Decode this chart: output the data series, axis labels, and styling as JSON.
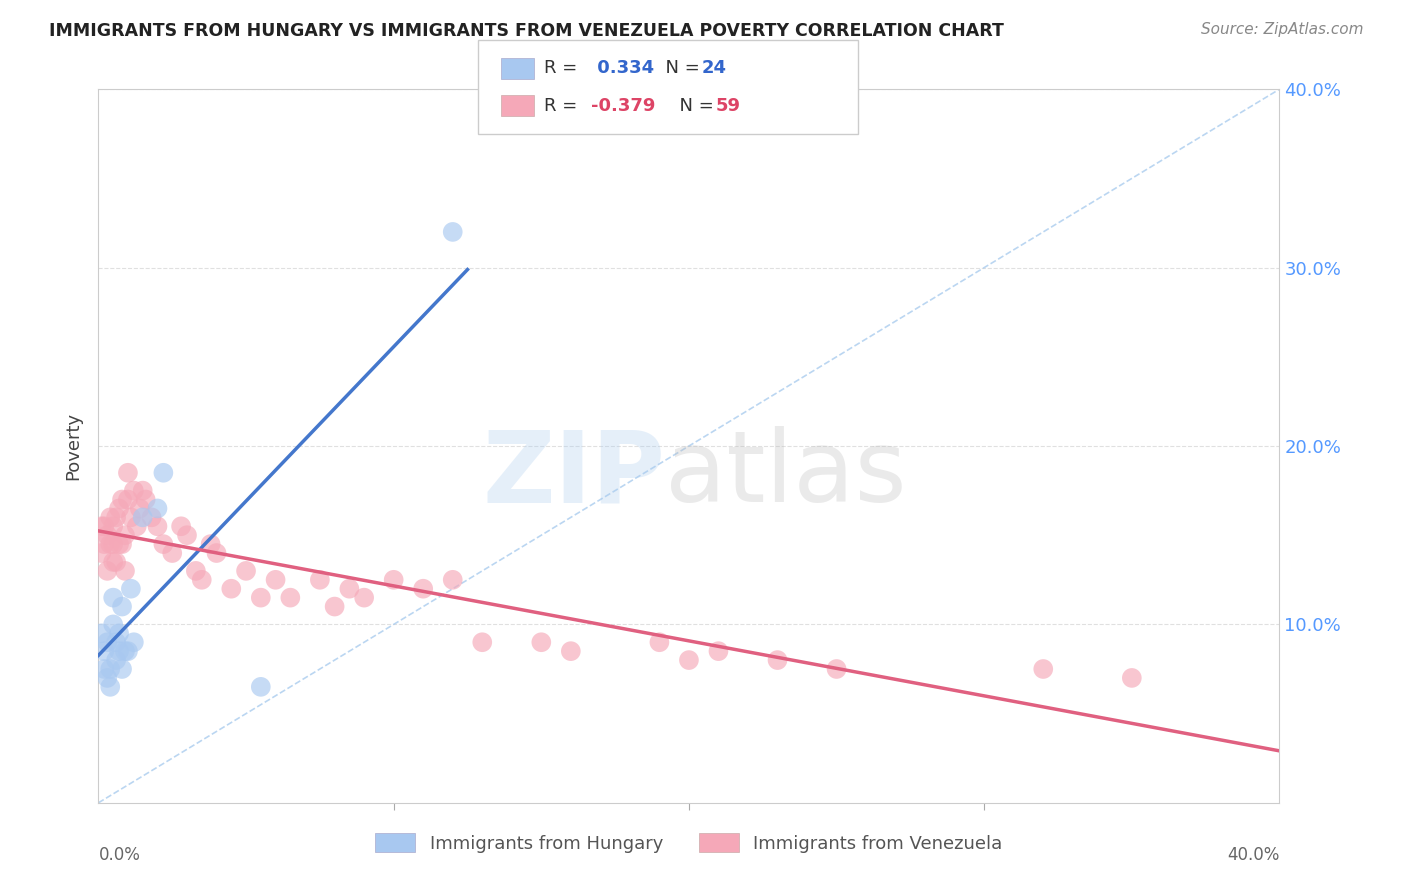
{
  "title": "IMMIGRANTS FROM HUNGARY VS IMMIGRANTS FROM VENEZUELA POVERTY CORRELATION CHART",
  "source": "Source: ZipAtlas.com",
  "ylabel": "Poverty",
  "right_yticks": [
    "40.0%",
    "30.0%",
    "20.0%",
    "10.0%"
  ],
  "right_ytick_vals": [
    0.4,
    0.3,
    0.2,
    0.1
  ],
  "xlim": [
    0.0,
    0.4
  ],
  "ylim": [
    0.0,
    0.4
  ],
  "hungary_R": 0.334,
  "hungary_N": 24,
  "venezuela_R": -0.379,
  "venezuela_N": 59,
  "hungary_color": "#A8C8F0",
  "venezuela_color": "#F5A8B8",
  "hungary_line_color": "#4477CC",
  "venezuela_line_color": "#E06080",
  "diagonal_color": "#AACCEE",
  "legend_hungary_label": "Immigrants from Hungary",
  "legend_venezuela_label": "Immigrants from Venezuela",
  "hungary_x": [
    0.001,
    0.002,
    0.002,
    0.003,
    0.003,
    0.004,
    0.004,
    0.005,
    0.005,
    0.006,
    0.006,
    0.007,
    0.007,
    0.008,
    0.008,
    0.009,
    0.01,
    0.011,
    0.012,
    0.015,
    0.02,
    0.022,
    0.055,
    0.12
  ],
  "hungary_y": [
    0.095,
    0.085,
    0.075,
    0.07,
    0.09,
    0.065,
    0.075,
    0.1,
    0.115,
    0.08,
    0.09,
    0.095,
    0.085,
    0.075,
    0.11,
    0.085,
    0.085,
    0.12,
    0.09,
    0.16,
    0.165,
    0.185,
    0.065,
    0.32
  ],
  "venezuela_x": [
    0.001,
    0.001,
    0.002,
    0.002,
    0.003,
    0.003,
    0.004,
    0.004,
    0.005,
    0.005,
    0.005,
    0.006,
    0.006,
    0.007,
    0.007,
    0.008,
    0.008,
    0.009,
    0.009,
    0.01,
    0.01,
    0.011,
    0.012,
    0.013,
    0.014,
    0.015,
    0.016,
    0.018,
    0.02,
    0.022,
    0.025,
    0.028,
    0.03,
    0.033,
    0.035,
    0.038,
    0.04,
    0.045,
    0.05,
    0.055,
    0.06,
    0.065,
    0.075,
    0.08,
    0.085,
    0.09,
    0.1,
    0.11,
    0.12,
    0.13,
    0.15,
    0.16,
    0.19,
    0.2,
    0.21,
    0.23,
    0.25,
    0.32,
    0.35
  ],
  "venezuela_y": [
    0.14,
    0.155,
    0.145,
    0.155,
    0.13,
    0.15,
    0.145,
    0.16,
    0.135,
    0.145,
    0.155,
    0.135,
    0.16,
    0.145,
    0.165,
    0.145,
    0.17,
    0.13,
    0.15,
    0.17,
    0.185,
    0.16,
    0.175,
    0.155,
    0.165,
    0.175,
    0.17,
    0.16,
    0.155,
    0.145,
    0.14,
    0.155,
    0.15,
    0.13,
    0.125,
    0.145,
    0.14,
    0.12,
    0.13,
    0.115,
    0.125,
    0.115,
    0.125,
    0.11,
    0.12,
    0.115,
    0.125,
    0.12,
    0.125,
    0.09,
    0.09,
    0.085,
    0.09,
    0.08,
    0.085,
    0.08,
    0.075,
    0.075,
    0.07
  ]
}
